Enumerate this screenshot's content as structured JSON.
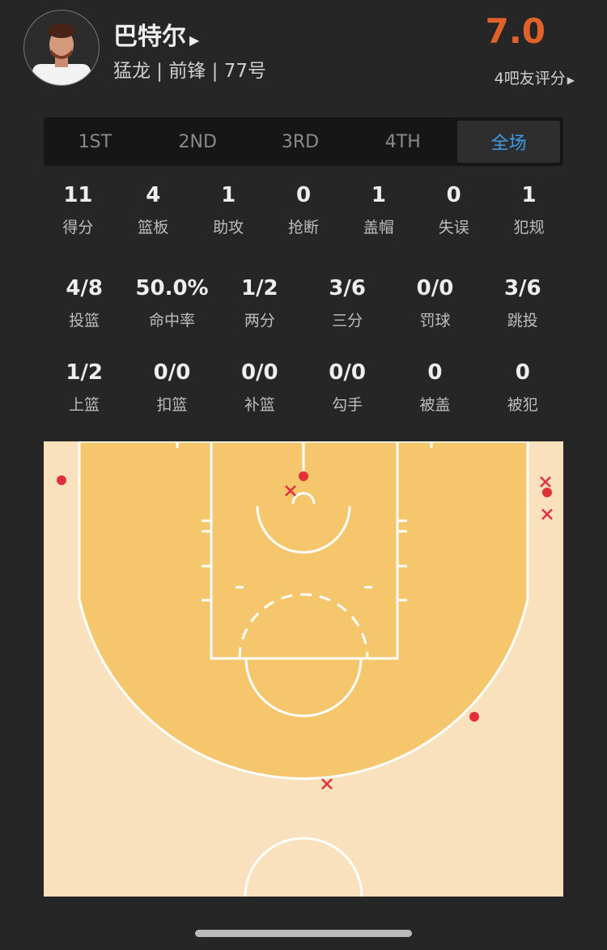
{
  "player": {
    "name": "巴特尔",
    "info": "猛龙 | 前锋 | 77号",
    "rating": "7.0",
    "raters": "4吧友评分"
  },
  "tabs": [
    {
      "label": "1ST"
    },
    {
      "label": "2ND"
    },
    {
      "label": "3RD"
    },
    {
      "label": "4TH"
    },
    {
      "label": "全场",
      "active": true
    }
  ],
  "stats_row1": [
    {
      "v": "11",
      "l": "得分"
    },
    {
      "v": "4",
      "l": "篮板"
    },
    {
      "v": "1",
      "l": "助攻"
    },
    {
      "v": "0",
      "l": "抢断"
    },
    {
      "v": "1",
      "l": "盖帽"
    },
    {
      "v": "0",
      "l": "失误"
    },
    {
      "v": "1",
      "l": "犯规"
    }
  ],
  "stats_row2": [
    {
      "v": "4/8",
      "l": "投篮"
    },
    {
      "v": "50.0%",
      "l": "命中率"
    },
    {
      "v": "1/2",
      "l": "两分"
    },
    {
      "v": "3/6",
      "l": "三分"
    },
    {
      "v": "0/0",
      "l": "罚球"
    },
    {
      "v": "3/6",
      "l": "跳投"
    }
  ],
  "stats_row3": [
    {
      "v": "1/2",
      "l": "上篮"
    },
    {
      "v": "0/0",
      "l": "扣篮"
    },
    {
      "v": "0/0",
      "l": "补篮"
    },
    {
      "v": "0/0",
      "l": "勾手"
    },
    {
      "v": "0",
      "l": "被盖"
    },
    {
      "v": "0",
      "l": "被犯"
    }
  ],
  "colors": {
    "rating": "#e0622a",
    "active_tab": "#3d9be9",
    "shot": "#e2303a",
    "paint": "#f5c66b",
    "court_outer": "#f8e1bc"
  },
  "shots": {
    "made": [
      "left corner three",
      "at rim",
      "right corner three",
      "right wing three"
    ],
    "missed": [
      "at rim",
      "right corner three",
      "right corner three",
      "top of key three"
    ]
  }
}
